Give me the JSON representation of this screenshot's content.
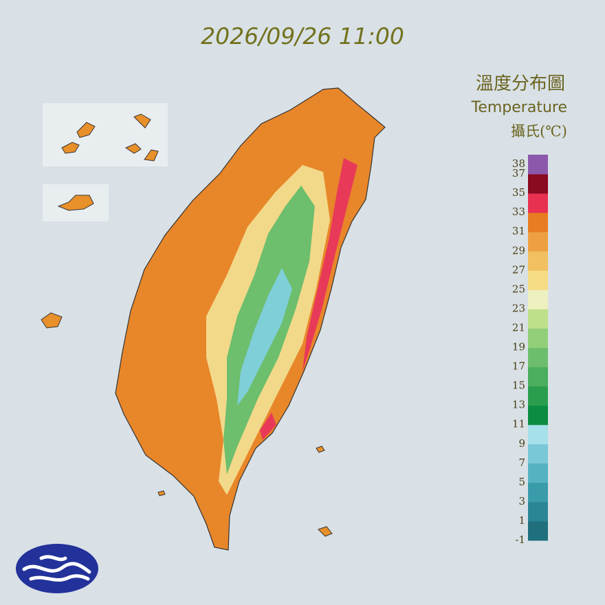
{
  "header": {
    "timestamp": "2026/09/26 11:00"
  },
  "legend": {
    "title": "溫度分布圖",
    "subtitle": "Temperature",
    "unit": "攝氏(℃)",
    "ticks": [
      38,
      37,
      35,
      33,
      31,
      29,
      27,
      25,
      23,
      21,
      19,
      17,
      15,
      13,
      11,
      9,
      7,
      5,
      3,
      1,
      -1
    ],
    "colors": [
      "#1f6f7d",
      "#2a8595",
      "#3a9bab",
      "#55b2c2",
      "#78c8d6",
      "#a6e0ea",
      "#0c8c42",
      "#2a9e4e",
      "#4aae5c",
      "#6cbe6c",
      "#92cf78",
      "#bfe08a",
      "#eef0c0",
      "#f6dc84",
      "#f2c060",
      "#eea040",
      "#e87c22",
      "#e83050",
      "#8a0a20",
      "#8c58ac"
    ]
  }
}
